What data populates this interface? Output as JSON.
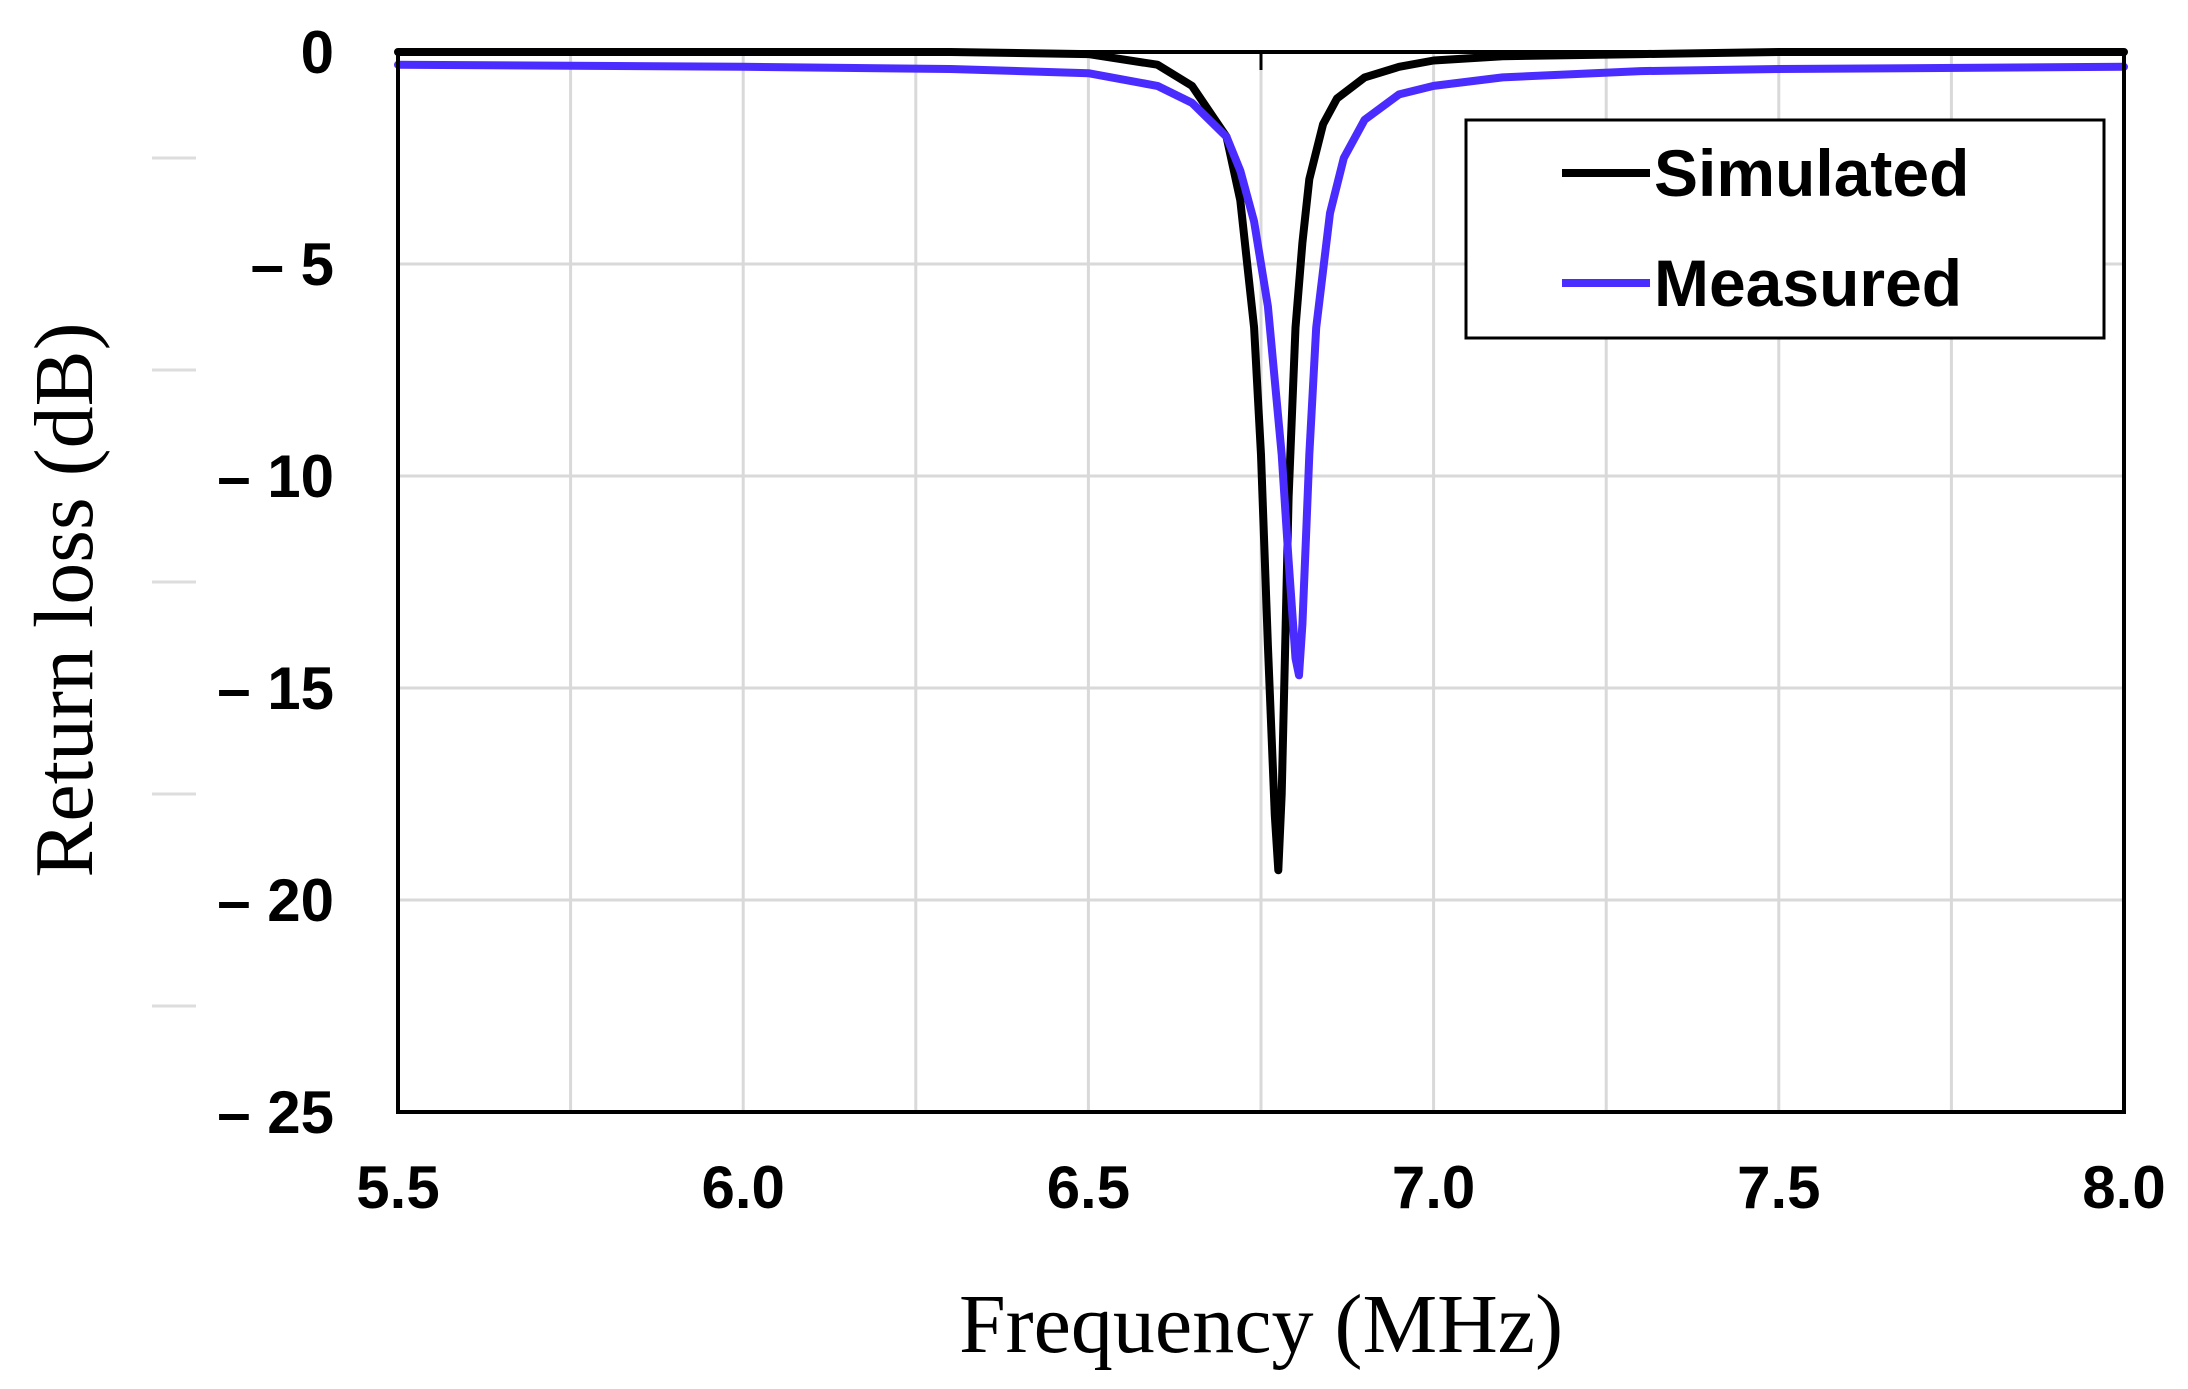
{
  "chart_data": {
    "type": "line",
    "xlabel": "Frequency (MHz)",
    "ylabel": "Return loss (dB)",
    "xlim": [
      5.5,
      8.0
    ],
    "ylim": [
      -25,
      0
    ],
    "x_ticks": [
      5.5,
      6.0,
      6.5,
      7.0,
      7.5,
      8.0
    ],
    "x_tick_labels": [
      "5.5",
      "6.0",
      "6.5",
      "7.0",
      "7.5",
      "8.0"
    ],
    "x_minor_gridlines": [
      5.75,
      6.25,
      6.75,
      7.25,
      7.75
    ],
    "y_ticks": [
      0,
      -5,
      -10,
      -15,
      -20,
      -25
    ],
    "y_tick_labels": [
      "0",
      "– 5",
      "– 10",
      "– 15",
      "– 20",
      "– 25"
    ],
    "grid": true,
    "legend_position": "top-right",
    "series": [
      {
        "name": "Simulated",
        "color": "#000000",
        "x": [
          5.5,
          6.0,
          6.3,
          6.5,
          6.6,
          6.65,
          6.7,
          6.72,
          6.74,
          6.75,
          6.76,
          6.77,
          6.775,
          6.78,
          6.785,
          6.79,
          6.8,
          6.81,
          6.82,
          6.84,
          6.86,
          6.9,
          6.95,
          7.0,
          7.1,
          7.3,
          7.5,
          8.0
        ],
        "y": [
          0,
          0,
          0,
          -0.05,
          -0.3,
          -0.8,
          -2.0,
          -3.5,
          -6.5,
          -9.5,
          -14.0,
          -18.0,
          -19.3,
          -17.5,
          -14.0,
          -10.5,
          -6.5,
          -4.5,
          -3.0,
          -1.7,
          -1.1,
          -0.6,
          -0.35,
          -0.2,
          -0.1,
          -0.05,
          0,
          0
        ]
      },
      {
        "name": "Measured",
        "color": "#4b2cff",
        "x": [
          5.5,
          6.0,
          6.3,
          6.5,
          6.6,
          6.65,
          6.7,
          6.72,
          6.74,
          6.76,
          6.78,
          6.79,
          6.8,
          6.805,
          6.81,
          6.815,
          6.82,
          6.83,
          6.85,
          6.87,
          6.9,
          6.95,
          7.0,
          7.1,
          7.3,
          7.5,
          8.0
        ],
        "y": [
          -0.3,
          -0.35,
          -0.4,
          -0.5,
          -0.8,
          -1.2,
          -2.0,
          -2.8,
          -4.0,
          -6.0,
          -9.5,
          -12.0,
          -14.3,
          -14.7,
          -13.5,
          -11.5,
          -9.5,
          -6.5,
          -3.8,
          -2.5,
          -1.6,
          -1.0,
          -0.8,
          -0.6,
          -0.45,
          -0.4,
          -0.35
        ]
      }
    ]
  }
}
